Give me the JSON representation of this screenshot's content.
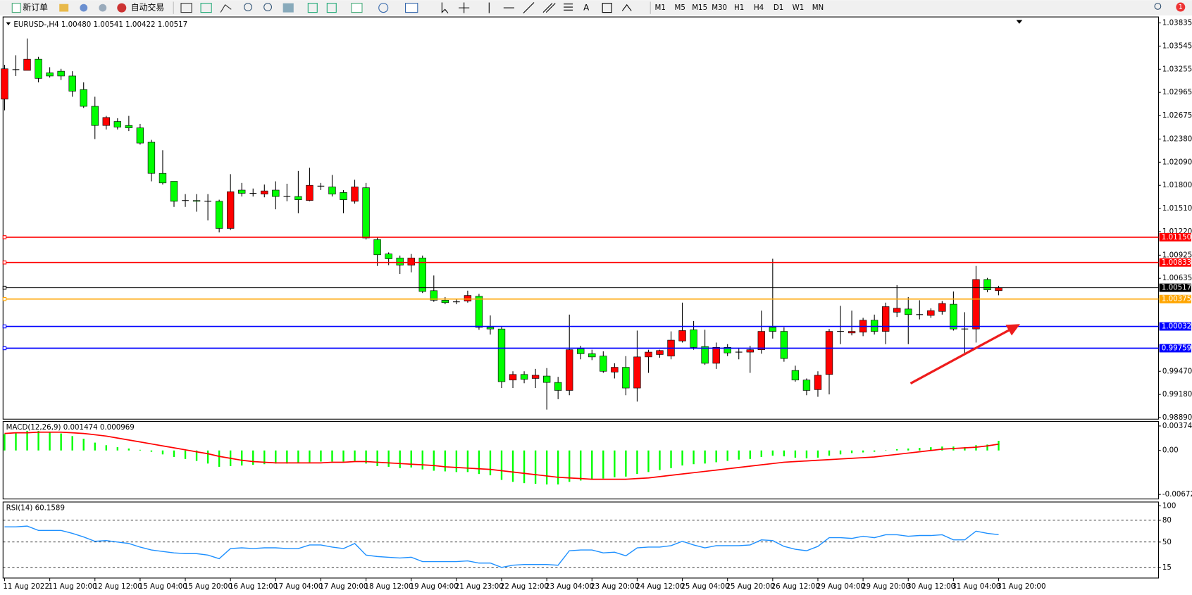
{
  "toolbar": {
    "buttons": [
      "新订单",
      "自动交易"
    ],
    "timeframes": [
      "M1",
      "M5",
      "M15",
      "M30",
      "H1",
      "H4",
      "D1",
      "W1",
      "MN"
    ],
    "badge": "1"
  },
  "chart_data": [
    {
      "type": "candlestick",
      "title": "EURUSD-,H4  1.00480 1.00541 1.00422 1.00517",
      "up_color": "#ff0000",
      "down_color": "#00ff00",
      "ylim": [
        0.9887,
        1.0391
      ],
      "yticks": [
        1.03835,
        1.03545,
        1.03255,
        1.02965,
        1.02675,
        {
          "value": 1.0238,
          "label": "1.02380"
        },
        {
          "value": 1.0209,
          "label": "1.02090"
        },
        {
          "value": 1.018,
          "label": "1.01800"
        },
        {
          "value": 1.0151,
          "label": "1.01510"
        },
        {
          "value": 1.0122,
          "label": "1.01220"
        },
        1.00925,
        1.00635,
        {
          "value": 0.9947,
          "label": "0.99470"
        },
        {
          "value": 0.9918,
          "label": "0.99180"
        },
        {
          "value": 0.9889,
          "label": "0.98890"
        }
      ],
      "levels": [
        {
          "value": 1.0115,
          "label": "1.01150",
          "color": "#ff0000"
        },
        {
          "value": 1.00833,
          "color": "#ff0000"
        },
        {
          "value": 1.00517,
          "color": "#000000"
        },
        {
          "value": 1.00375,
          "color": "#ffa500"
        },
        {
          "value": 1.00032,
          "color": "#0000ff"
        },
        {
          "value": 0.99759,
          "color": "#0000ff"
        }
      ],
      "x_labels": [
        "11 Aug 2022",
        "11 Aug 20:00",
        "12 Aug 12:00",
        "15 Aug 04:00",
        "15 Aug 20:00",
        "16 Aug 12:00",
        "17 Aug 04:00",
        "17 Aug 20:00",
        "18 Aug 12:00",
        "19 Aug 04:00",
        "21 Aug 23:00",
        "22 Aug 12:00",
        "23 Aug 04:00",
        "23 Aug 20:00",
        "24 Aug 12:00",
        "25 Aug 04:00",
        "25 Aug 20:00",
        "26 Aug 12:00",
        "29 Aug 04:00",
        "29 Aug 20:00",
        "30 Aug 12:00",
        "31 Aug 04:00",
        "31 Aug 20:00"
      ],
      "candles": [
        [
          1.0288,
          1.0331,
          1.0274,
          1.0326
        ],
        [
          1.0325,
          1.0343,
          1.0317,
          1.0325
        ],
        [
          1.0324,
          1.0364,
          1.0324,
          1.0338
        ],
        [
          1.0338,
          1.0341,
          1.0309,
          1.0314
        ],
        [
          1.0321,
          1.0328,
          1.0315,
          1.0317
        ],
        [
          1.0323,
          1.0326,
          1.0312,
          1.0317
        ],
        [
          1.0317,
          1.0323,
          1.0291,
          1.0298
        ],
        [
          1.03,
          1.0309,
          1.0277,
          1.0279
        ],
        [
          1.0279,
          1.0291,
          1.0238,
          1.0255
        ],
        [
          1.0255,
          1.0267,
          1.025,
          1.0265
        ],
        [
          1.026,
          1.0264,
          1.025,
          1.0253
        ],
        [
          1.0255,
          1.0267,
          1.0248,
          1.0252
        ],
        [
          1.0252,
          1.0257,
          1.0231,
          1.0233
        ],
        [
          1.0234,
          1.0237,
          1.0185,
          1.0195
        ],
        [
          1.0195,
          1.0224,
          1.0181,
          1.0183
        ],
        [
          1.0185,
          1.0185,
          1.0153,
          1.016
        ],
        [
          1.0161,
          1.0169,
          1.0153,
          1.0161
        ],
        [
          1.0161,
          1.0169,
          1.0147,
          1.016
        ],
        [
          1.016,
          1.0169,
          1.0136,
          1.016
        ],
        [
          1.016,
          1.0162,
          1.0121,
          1.0126
        ],
        [
          1.0126,
          1.0194,
          1.0124,
          1.0172
        ],
        [
          1.0174,
          1.0183,
          1.0166,
          1.017
        ],
        [
          1.017,
          1.0176,
          1.0166,
          1.017
        ],
        [
          1.0169,
          1.0181,
          1.0165,
          1.0173
        ],
        [
          1.0174,
          1.0185,
          1.015,
          1.0166
        ],
        [
          1.0166,
          1.0182,
          1.016,
          1.0166
        ],
        [
          1.0166,
          1.0198,
          1.0145,
          1.0162
        ],
        [
          1.0161,
          1.0202,
          1.016,
          1.018
        ],
        [
          1.0179,
          1.0183,
          1.0174,
          1.0179
        ],
        [
          1.0178,
          1.0193,
          1.0166,
          1.0169
        ],
        [
          1.0171,
          1.0174,
          1.0145,
          1.0162
        ],
        [
          1.016,
          1.0187,
          1.0157,
          1.0178
        ],
        [
          1.0177,
          1.0183,
          1.0112,
          1.0114
        ],
        [
          1.0112,
          1.0115,
          1.0079,
          1.0093
        ],
        [
          1.0094,
          1.0096,
          1.008,
          1.0088
        ],
        [
          1.0089,
          1.0092,
          1.0069,
          1.008
        ],
        [
          1.008,
          1.0094,
          1.0071,
          1.0089
        ],
        [
          1.0089,
          1.0092,
          1.0045,
          1.0047
        ],
        [
          1.0048,
          1.0067,
          1.0034,
          1.0036
        ],
        [
          1.0036,
          1.004,
          1.0031,
          1.0033
        ],
        [
          1.0034,
          1.0038,
          1.0031,
          1.0034
        ],
        [
          1.0035,
          1.0048,
          1.0033,
          1.0042
        ],
        [
          1.0041,
          1.0044,
          0.9999,
          1.0002
        ],
        [
          1.0002,
          1.0017,
          0.9993,
          1.0
        ],
        [
          1.0,
          1.0003,
          0.9926,
          0.9934
        ],
        [
          0.9936,
          0.9947,
          0.9926,
          0.9943
        ],
        [
          0.9943,
          0.9947,
          0.9932,
          0.9937
        ],
        [
          0.9938,
          0.995,
          0.9926,
          0.9942
        ],
        [
          0.9941,
          0.9951,
          0.9899,
          0.9933
        ],
        [
          0.9933,
          0.994,
          0.9912,
          0.9923
        ],
        [
          0.9923,
          1.0018,
          0.9917,
          0.9974
        ],
        [
          0.9975,
          0.9979,
          0.9962,
          0.9969
        ],
        [
          0.9969,
          0.9974,
          0.9961,
          0.9965
        ],
        [
          0.9966,
          0.9972,
          0.9945,
          0.9947
        ],
        [
          0.9946,
          0.9957,
          0.9938,
          0.9952
        ],
        [
          0.9952,
          0.9966,
          0.9917,
          0.9926
        ],
        [
          0.9926,
          0.9998,
          0.9909,
          0.9965
        ],
        [
          0.9965,
          0.9974,
          0.9945,
          0.9971
        ],
        [
          0.9968,
          0.9974,
          0.9964,
          0.9973
        ],
        [
          0.9966,
          0.9997,
          0.9962,
          0.9986
        ],
        [
          0.9985,
          1.0033,
          0.9983,
          0.9998
        ],
        [
          0.9999,
          1.001,
          0.9974,
          0.9977
        ],
        [
          0.9978,
          0.9999,
          0.9955,
          0.9957
        ],
        [
          0.9957,
          0.9983,
          0.995,
          0.9977
        ],
        [
          0.9977,
          0.9981,
          0.9966,
          0.997
        ],
        [
          0.9971,
          0.9976,
          0.9962,
          0.9971
        ],
        [
          0.9971,
          0.9979,
          0.9945,
          0.9974
        ],
        [
          0.9974,
          1.0023,
          0.9969,
          0.9997
        ],
        [
          1.0002,
          1.0088,
          0.9988,
          0.9997
        ],
        [
          0.9997,
          1.0002,
          0.9959,
          0.9963
        ],
        [
          0.9948,
          0.9954,
          0.9934,
          0.9936
        ],
        [
          0.9936,
          0.9938,
          0.9917,
          0.9923
        ],
        [
          0.9924,
          0.9947,
          0.9915,
          0.9942
        ],
        [
          0.9943,
          1.0,
          0.9918,
          0.9997
        ],
        [
          0.9997,
          1.0029,
          0.9981,
          0.9997
        ],
        [
          0.9995,
          1.0023,
          0.9992,
          0.9997
        ],
        [
          0.9996,
          1.0014,
          0.9991,
          1.0011
        ],
        [
          1.0011,
          1.0018,
          0.9993,
          0.9997
        ],
        [
          0.9997,
          1.0033,
          0.9981,
          1.0028
        ],
        [
          1.0021,
          1.0055,
          1.0015,
          1.0026
        ],
        [
          1.0025,
          1.004,
          0.9981,
          1.0018
        ],
        [
          1.0018,
          1.0036,
          1.0012,
          1.0018
        ],
        [
          1.0017,
          1.0026,
          1.0014,
          1.0023
        ],
        [
          1.0022,
          1.0035,
          1.0018,
          1.0032
        ],
        [
          1.0031,
          1.0047,
          0.9998,
          1.0
        ],
        [
          1.0,
          1.0021,
          0.9969,
          1.0
        ],
        [
          1.0,
          1.0079,
          0.9983,
          1.0062
        ],
        [
          1.0062,
          1.0064,
          1.0046,
          1.0049
        ],
        [
          1.0048,
          1.00541,
          1.00422,
          1.00517
        ]
      ]
    },
    {
      "type": "macd",
      "title": "MACD(12,26,9) 0.001474 0.000969",
      "ylim": [
        -0.00742,
        0.00444
      ],
      "yticks": [
        0.003744,
        {
          "value": 0,
          "label": "0.00"
        },
        -0.006723
      ],
      "series": [
        {
          "color": "#00ff00",
          "values": [
            0.0025,
            0.0027,
            0.003,
            0.003,
            0.0028,
            0.0026,
            0.0022,
            0.0018,
            0.0012,
            0.0008,
            0.0005,
            0.0003,
            0.0001,
            -0.0002,
            -0.0006,
            -0.001,
            -0.0013,
            -0.0016,
            -0.002,
            -0.0025,
            -0.0024,
            -0.0023,
            -0.0022,
            -0.0021,
            -0.002,
            -0.002,
            -0.0019,
            -0.0018,
            -0.0017,
            -0.0017,
            -0.0017,
            -0.0016,
            -0.002,
            -0.0024,
            -0.0025,
            -0.0027,
            -0.0026,
            -0.0029,
            -0.0031,
            -0.0032,
            -0.0033,
            -0.0033,
            -0.0036,
            -0.0038,
            -0.0045,
            -0.0048,
            -0.005,
            -0.0051,
            -0.0052,
            -0.0052,
            -0.0048,
            -0.0046,
            -0.0044,
            -0.0043,
            -0.0041,
            -0.004,
            -0.0036,
            -0.0033,
            -0.003,
            -0.0027,
            -0.0023,
            -0.0021,
            -0.002,
            -0.0018,
            -0.0016,
            -0.0014,
            -0.0013,
            -0.001,
            -0.0008,
            -0.0009,
            -0.0011,
            -0.0012,
            -0.0011,
            -0.0008,
            -0.0006,
            -0.0004,
            -0.0003,
            -0.0002,
            5e-05,
            0.0002,
            0.0003,
            0.0004,
            0.0005,
            0.0006,
            0.0006,
            0.0005,
            0.0008,
            0.0009,
            0.001474
          ]
        },
        {
          "color": "#ff0000",
          "values": [
            0.0026,
            0.0027,
            0.0027,
            0.0028,
            0.0028,
            0.0028,
            0.0027,
            0.0026,
            0.0024,
            0.0022,
            0.0019,
            0.0016,
            0.0013,
            0.001,
            0.0007,
            0.0004,
            0.0001,
            -0.0002,
            -0.0005,
            -0.0009,
            -0.0012,
            -0.0015,
            -0.0017,
            -0.0018,
            -0.0019,
            -0.0019,
            -0.0019,
            -0.0019,
            -0.0019,
            -0.0018,
            -0.0018,
            -0.0017,
            -0.0017,
            -0.0018,
            -0.0019,
            -0.002,
            -0.0021,
            -0.0022,
            -0.0023,
            -0.0025,
            -0.0026,
            -0.0027,
            -0.0028,
            -0.0029,
            -0.0031,
            -0.0033,
            -0.0035,
            -0.0037,
            -0.0039,
            -0.0041,
            -0.0042,
            -0.0043,
            -0.0044,
            -0.0044,
            -0.0044,
            -0.0044,
            -0.0043,
            -0.0042,
            -0.004,
            -0.0038,
            -0.0036,
            -0.0034,
            -0.0032,
            -0.003,
            -0.0028,
            -0.0026,
            -0.0024,
            -0.0022,
            -0.002,
            -0.0018,
            -0.0017,
            -0.0016,
            -0.0015,
            -0.0014,
            -0.0013,
            -0.0012,
            -0.0011,
            -0.001,
            -0.0008,
            -0.0006,
            -0.0004,
            -0.0002,
            0,
            0.0002,
            0.0003,
            0.0004,
            0.0005,
            0.0007,
            0.000969
          ]
        }
      ]
    },
    {
      "type": "line",
      "title": "RSI(14) 60.1589",
      "color": "#1e90ff",
      "ylim": [
        0.3,
        105.2
      ],
      "yticks": [
        100,
        80,
        50,
        15
      ],
      "levels": [
        80,
        50,
        15
      ],
      "values": [
        71,
        71,
        72,
        66,
        66,
        66,
        62,
        57,
        51,
        52,
        50,
        48,
        43,
        39,
        37,
        35,
        34,
        34,
        32,
        27,
        41,
        42,
        41,
        42,
        42,
        41,
        41,
        46,
        46,
        43,
        41,
        48,
        32,
        30,
        29,
        28,
        29,
        23,
        23,
        23,
        23,
        24,
        21,
        21,
        15,
        18,
        19,
        19,
        19,
        18,
        38,
        39,
        39,
        35,
        36,
        31,
        42,
        43,
        43,
        45,
        51,
        46,
        42,
        45,
        45,
        45,
        46,
        53,
        52,
        44,
        40,
        38,
        44,
        56,
        56,
        55,
        58,
        56,
        60,
        60,
        58,
        59,
        59,
        60,
        53,
        53,
        65,
        62,
        60.1589
      ]
    }
  ]
}
